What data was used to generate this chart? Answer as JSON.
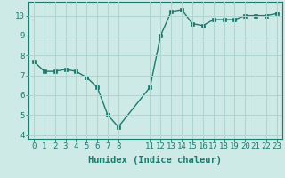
{
  "x": [
    0,
    1,
    2,
    3,
    4,
    5,
    6,
    7,
    8,
    11,
    12,
    13,
    14,
    15,
    16,
    17,
    18,
    19,
    20,
    21,
    22,
    23
  ],
  "y": [
    7.7,
    7.2,
    7.2,
    7.3,
    7.2,
    6.9,
    6.4,
    5.0,
    4.4,
    6.4,
    9.0,
    10.2,
    10.3,
    9.6,
    9.5,
    9.8,
    9.8,
    9.8,
    10.0,
    10.0,
    10.0,
    10.1
  ],
  "line_color": "#1a7a6e",
  "marker_color": "#1a7a6e",
  "bg_color": "#ceeae6",
  "grid_color": "#b0d4d0",
  "xlabel": "Humidex (Indice chaleur)",
  "xlim": [
    -0.5,
    23.5
  ],
  "ylim": [
    3.8,
    10.7
  ],
  "xticks": [
    0,
    1,
    2,
    3,
    4,
    5,
    6,
    7,
    8,
    11,
    12,
    13,
    14,
    15,
    16,
    17,
    18,
    19,
    20,
    21,
    22,
    23
  ],
  "yticks": [
    4,
    5,
    6,
    7,
    8,
    9,
    10
  ],
  "xlabel_fontsize": 7.5,
  "tick_fontsize": 6.5,
  "line_width": 1.0,
  "marker_size": 2.5
}
